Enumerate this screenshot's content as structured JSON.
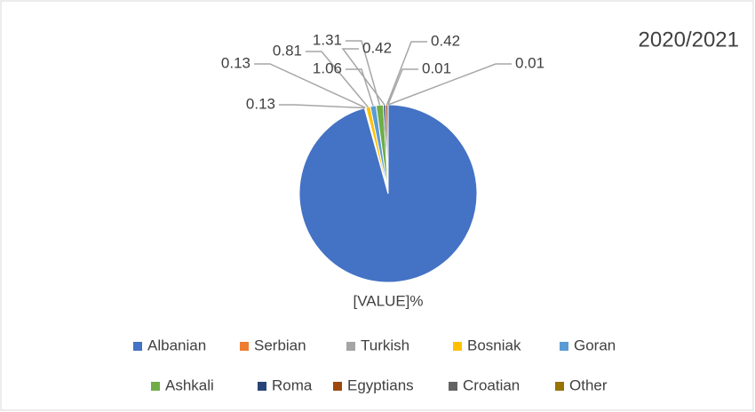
{
  "chart_data": {
    "type": "pie",
    "title": "2020/2021",
    "categories": [
      "Albanian",
      "Serbian",
      "Turkish",
      "Bosniak",
      "Goran",
      "Ashkali",
      "Roma",
      "Egyptians",
      "Croatian",
      "Other"
    ],
    "values": [
      95.7,
      0.13,
      0.13,
      0.81,
      1.06,
      1.31,
      0.42,
      0.42,
      0.01,
      0.01
    ],
    "value_labels": [
      "[VALUE]%",
      "0.13",
      "0.13",
      "0.81",
      "1.06",
      "1.31",
      "0.42",
      "0.42",
      "0.01",
      "0.01"
    ],
    "colors": [
      "#4472c4",
      "#ed7d31",
      "#a5a5a5",
      "#ffc000",
      "#5b9bd5",
      "#70ad47",
      "#264478",
      "#9e480e",
      "#636363",
      "#997300"
    ],
    "legend": "bottom"
  }
}
